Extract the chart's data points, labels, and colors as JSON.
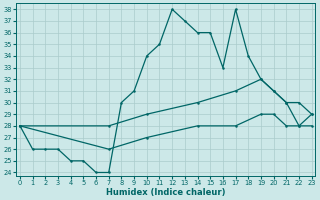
{
  "xlabel": "Humidex (Indice chaleur)",
  "bg_color": "#cce8e8",
  "grid_color": "#aacccc",
  "line_color": "#006666",
  "xlim": [
    0,
    23
  ],
  "ylim": [
    24,
    38
  ],
  "yticks": [
    24,
    25,
    26,
    27,
    28,
    29,
    30,
    31,
    32,
    33,
    34,
    35,
    36,
    37,
    38
  ],
  "xticks": [
    0,
    1,
    2,
    3,
    4,
    5,
    6,
    7,
    8,
    9,
    10,
    11,
    12,
    13,
    14,
    15,
    16,
    17,
    18,
    19,
    20,
    21,
    22,
    23
  ],
  "line1_x": [
    0,
    1,
    2,
    3,
    4,
    5,
    6,
    7,
    8,
    9,
    10,
    11,
    12,
    13,
    14,
    15,
    16,
    17,
    18,
    19,
    20,
    21,
    22,
    23
  ],
  "line1_y": [
    28,
    26,
    26,
    26,
    25,
    25,
    24,
    24,
    30,
    31,
    34,
    35,
    38,
    37,
    36,
    36,
    33,
    38,
    34,
    32,
    31,
    30,
    28,
    29
  ],
  "line2_x": [
    0,
    7,
    10,
    14,
    17,
    19,
    20,
    21,
    22,
    23
  ],
  "line2_y": [
    28,
    28,
    29,
    30,
    31,
    32,
    31,
    30,
    30,
    29
  ],
  "line3_x": [
    0,
    7,
    10,
    14,
    17,
    19,
    20,
    21,
    22,
    23
  ],
  "line3_y": [
    28,
    26,
    27,
    28,
    28,
    29,
    29,
    28,
    28,
    28
  ]
}
